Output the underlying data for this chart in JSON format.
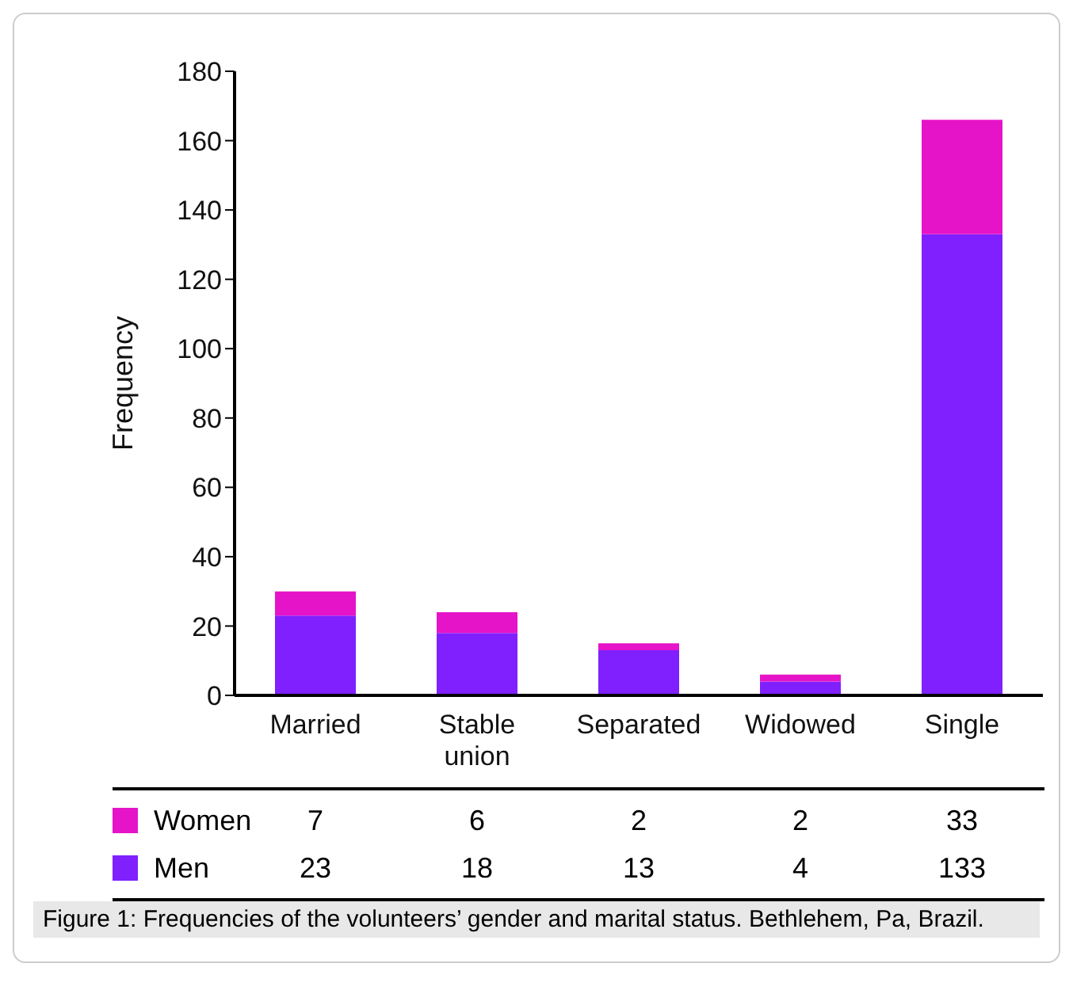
{
  "chart_data": {
    "type": "bar",
    "stacked": true,
    "ylabel": "Frequency",
    "categories": [
      "Married",
      "Stable union",
      "Separated",
      "Widowed",
      "Single"
    ],
    "series": [
      {
        "name": "Men",
        "color": "#8020ff",
        "values": [
          23,
          18,
          13,
          4,
          133
        ]
      },
      {
        "name": "Women",
        "color": "#e614c8",
        "values": [
          7,
          6,
          2,
          2,
          33
        ]
      }
    ],
    "ylim": [
      0,
      180
    ],
    "yticks": [
      0,
      20,
      40,
      60,
      80,
      100,
      120,
      140,
      160,
      180
    ],
    "data_labels": true,
    "legend": "bottom",
    "annotations": [
      "Figure 1: Frequencies of the volunteers’ gender and marital status. Bethlehem, Pa, Brazil."
    ]
  }
}
